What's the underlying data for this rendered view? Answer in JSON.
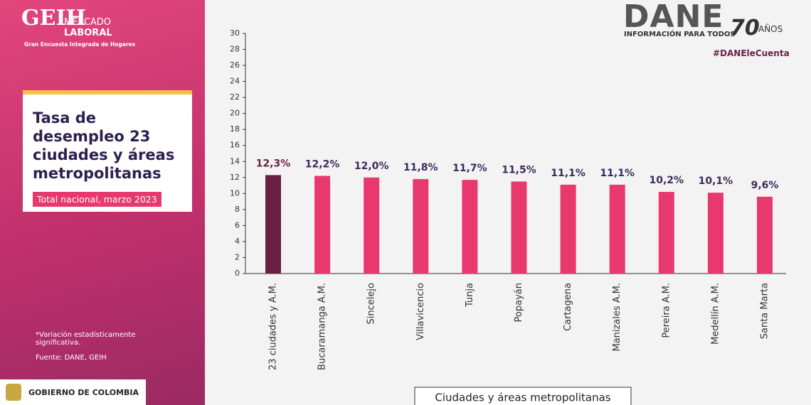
{
  "branding": {
    "logo": "GEIH",
    "logo_line1": "MERCADO",
    "logo_line2": "LABORAL",
    "logo_sub": "Gran Encuesta Integrada de Hogares",
    "note": "*Variación estadísticamente significativa.",
    "source": "Fuente: DANE, GEIH",
    "government": "GOBIERNO DE COLOMBIA",
    "dane": "DANE",
    "dane_sub": "INFORMACIÓN PARA TODOS",
    "anniversary": "70",
    "anniversary_word": "AÑOS",
    "hashtag": "#DANEleCuenta"
  },
  "chart_data": {
    "type": "bar",
    "title": "Tasa de desempleo 23 ciudades y áreas metropolitanas",
    "subtitle": "Total nacional, marzo 2023",
    "x_label": "Ciudades y áreas metropolitanas",
    "categories": [
      "23 ciudades y A.M.",
      "Bucaramanga A.M.",
      "Sincelejo",
      "Villavicencio",
      "Tunja",
      "Popayán",
      "Cartagena",
      "Manizales A.M.",
      "Pereira A.M.",
      "Medellín A.M.",
      "Santa Marta"
    ],
    "values": [
      12.3,
      12.2,
      12.0,
      11.8,
      11.7,
      11.5,
      11.1,
      11.1,
      10.2,
      10.1,
      9.6
    ],
    "value_labels": [
      "12,3%",
      "12,2%",
      "12,0%",
      "11,8%",
      "11,7%",
      "11,5%",
      "11,1%",
      "11,1%",
      "10,2%",
      "10,1%",
      "9,6%"
    ],
    "colors": [
      "#6b1f45",
      "#e8396f",
      "#e8396f",
      "#e8396f",
      "#e8396f",
      "#e8396f",
      "#e8396f",
      "#e8396f",
      "#e8396f",
      "#e8396f",
      "#e8396f"
    ],
    "ylim": [
      0,
      30
    ],
    "yticks": [
      0,
      2,
      4,
      6,
      8,
      10,
      12,
      14,
      16,
      18,
      20,
      22,
      24,
      26,
      28,
      30
    ]
  }
}
